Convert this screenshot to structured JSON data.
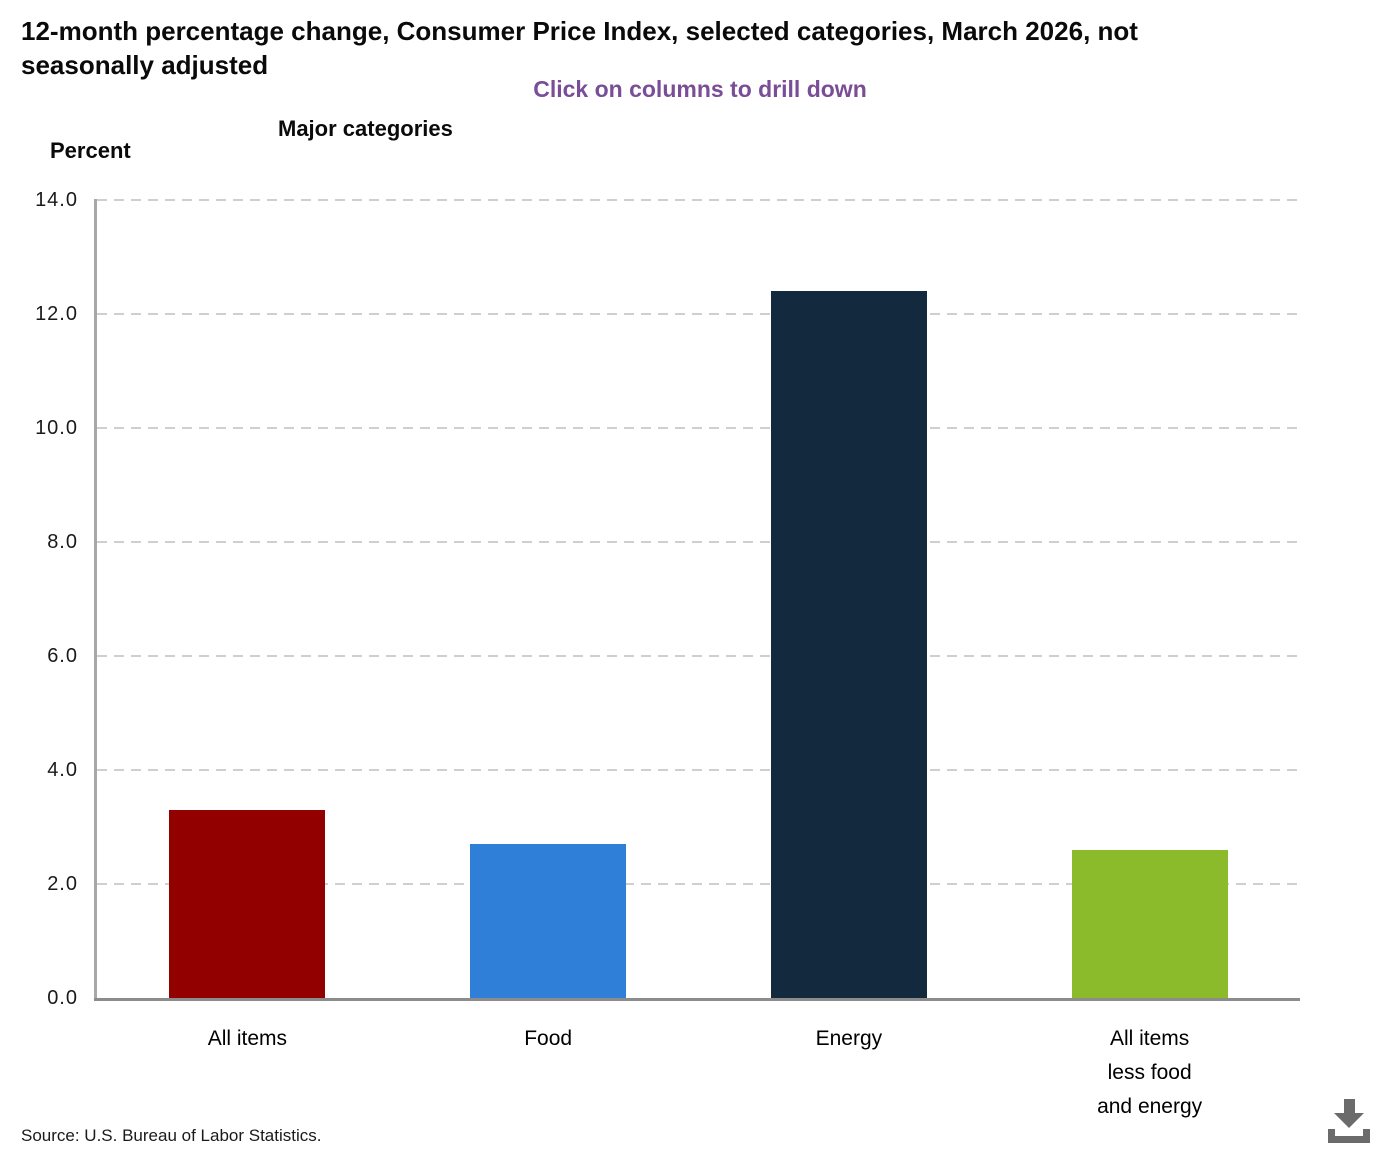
{
  "title": "12-month percentage change, Consumer Price Index, selected categories, March 2026, not seasonally adjusted",
  "title_lines": [
    "12-month percentage change, Consumer Price Index, selected categories, March 2026, not",
    "seasonally adjusted"
  ],
  "subtitle": "Click on columns to drill down",
  "x_axis_title": "Major categories",
  "y_axis_unit": "Percent",
  "source_note": "Source: U.S. Bureau of Labor Statistics.",
  "icons": {
    "download": "download-icon"
  },
  "colors": {
    "subtitle_text": "#7a4e96",
    "axis_line": "#8c8c8c",
    "y_axis_line": "#a8a8a8",
    "gridline": "#cfcfcf",
    "download_icon": "#6b6b6b"
  },
  "chart_data": {
    "type": "bar",
    "title": "12-month percentage change, Consumer Price Index, selected categories, March 2026, not seasonally adjusted",
    "subtitle": "Click on columns to drill down",
    "xlabel": "Major categories",
    "ylabel": "Percent",
    "categories": [
      "All items",
      "Food",
      "Energy",
      "All items less food and energy"
    ],
    "category_label_lines": [
      [
        "All items"
      ],
      [
        "Food"
      ],
      [
        "Energy"
      ],
      [
        "All items",
        "less food",
        "and energy"
      ]
    ],
    "values": [
      3.3,
      2.7,
      12.4,
      2.6
    ],
    "bar_colors": [
      "#930000",
      "#2f7ed8",
      "#12293e",
      "#8bbb2b"
    ],
    "ylim": [
      0,
      14
    ],
    "ytick_values": [
      0,
      2,
      4,
      6,
      8,
      10,
      12,
      14
    ],
    "ytick_labels": [
      "0.0",
      "2.0",
      "4.0",
      "6.0",
      "8.0",
      "10.0",
      "12.0",
      "14.0"
    ],
    "grid": "horizontal-dashed",
    "legend": "none",
    "interaction_hint": "columns are clickable to drill down"
  }
}
